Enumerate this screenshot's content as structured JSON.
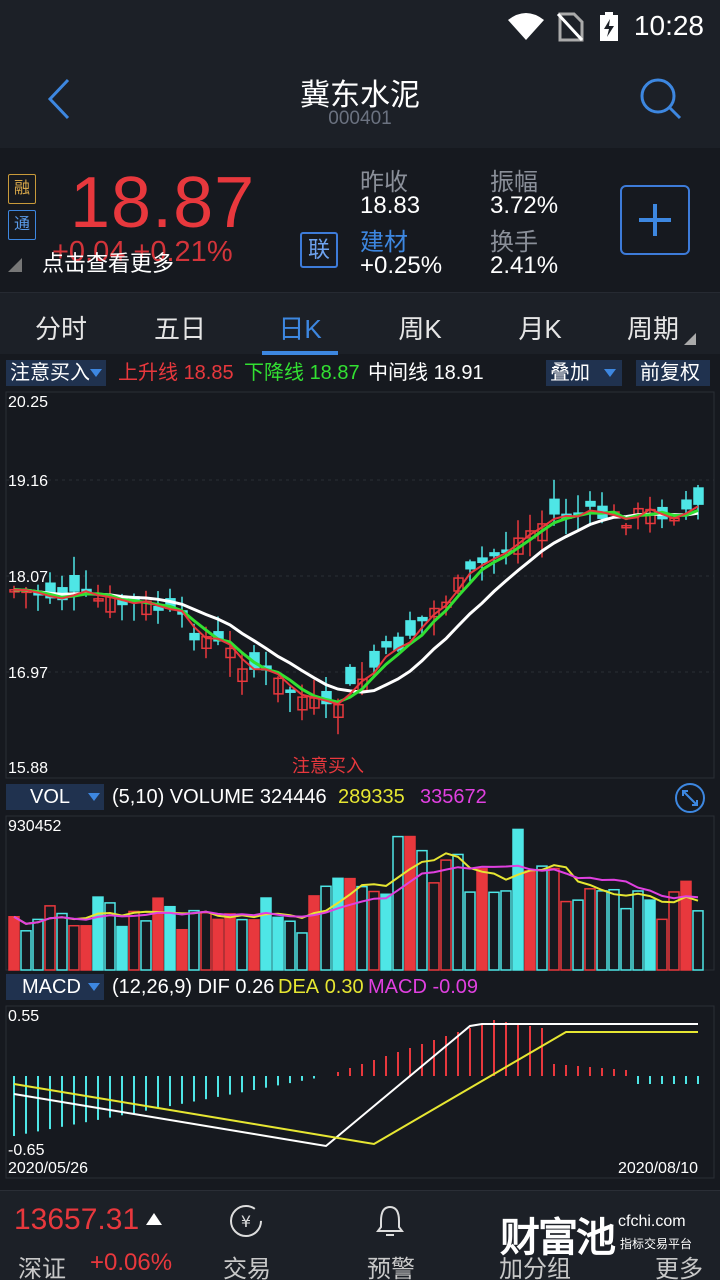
{
  "status_bar": {
    "time": "10:28"
  },
  "header": {
    "title": "冀东水泥",
    "code": "000401"
  },
  "quote": {
    "tag_rong": "融",
    "tag_tong": "通",
    "price": "18.87",
    "change": "+0.04  +0.21%",
    "tip": "点击查看更多",
    "lian": "联",
    "stats": {
      "prev_close_label": "昨收",
      "prev_close": "18.83",
      "amplitude_label": "振幅",
      "amplitude": "3.72%",
      "sector_label": "建材",
      "sector_change": "+0.25%",
      "turnover_label": "换手",
      "turnover": "2.41%"
    },
    "colors": {
      "up": "#e8383d",
      "accent": "#3d87e0"
    }
  },
  "tabs": [
    "分时",
    "五日",
    "日K",
    "周K",
    "月K",
    "周期"
  ],
  "active_tab": "日K",
  "kline_bar": {
    "indicator": "注意买入",
    "up_label": "上升线",
    "up_value": "18.85",
    "down_label": "下降线",
    "down_value": "18.87",
    "mid_label": "中间线",
    "mid_value": "18.91",
    "overlay": "叠加",
    "adjust": "前复权"
  },
  "kline": {
    "y_labels": [
      "20.25",
      "19.16",
      "18.07",
      "16.97",
      "15.88"
    ],
    "signal": "注意买入"
  },
  "vol_bar": {
    "name": "VOL",
    "params": "(5,10) VOLUME",
    "volume": "324446",
    "ma5": "289335",
    "ma10": "335672",
    "max": "930452"
  },
  "macd_bar": {
    "name": "MACD",
    "params": "(12,26,9) DIF",
    "dif": "0.26",
    "dea_label": "DEA",
    "dea": "0.30",
    "macd_label": "MACD",
    "macd": "-0.09",
    "top": "0.55",
    "bottom": "-0.65",
    "date_start": "2020/05/26",
    "date_end": "2020/08/10"
  },
  "bottom": {
    "index_value": "13657.31",
    "index_name": "深证",
    "index_change": "+0.06%",
    "trade": "交易",
    "alert": "预警",
    "add_group": "加分组",
    "more": "更多",
    "logo_text": "财富池",
    "logo_site": "cfchi.com",
    "logo_sub": "指标交易平台"
  }
}
